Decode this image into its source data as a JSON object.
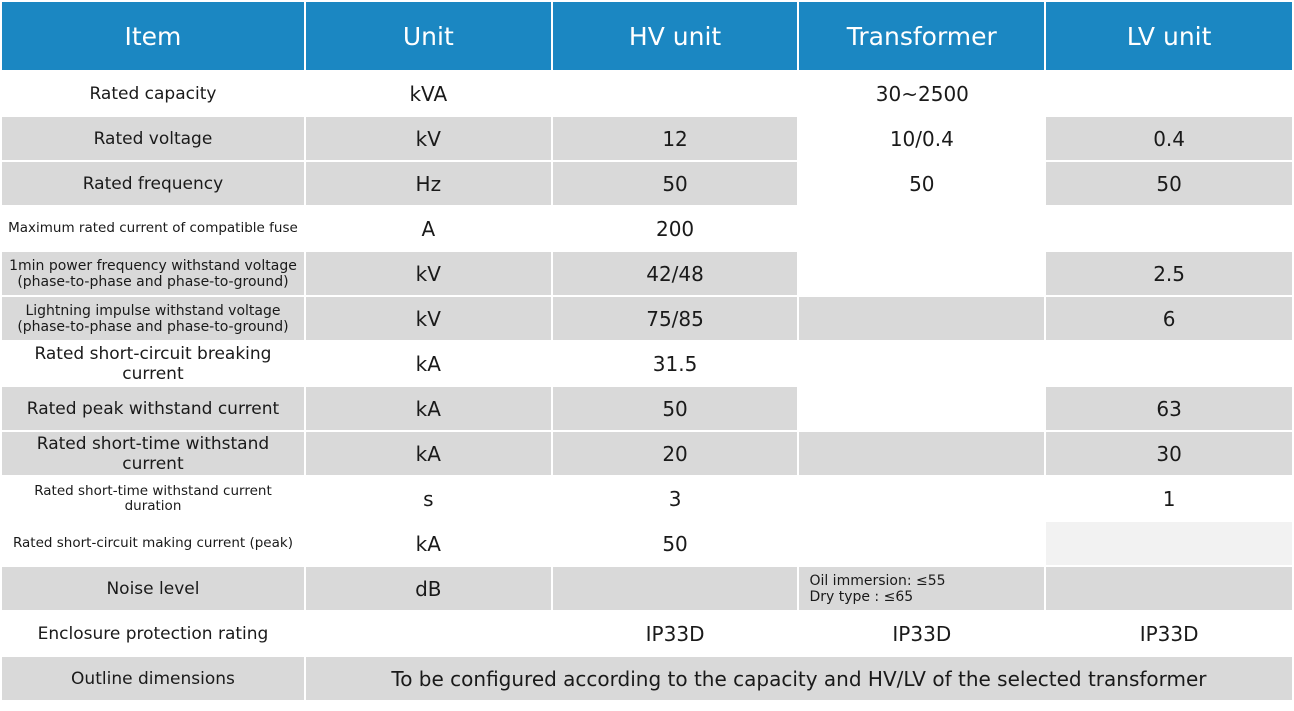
{
  "headers": {
    "item": "Item",
    "unit": "Unit",
    "hv": "HV unit",
    "transformer": "Transformer",
    "lv": "LV unit"
  },
  "rows": {
    "rated_capacity": {
      "item": "Rated capacity",
      "unit": "kVA",
      "value": "30~2500"
    },
    "rated_voltage": {
      "item": "Rated voltage",
      "unit": "kV",
      "hv": "12",
      "transformer": "10/0.4",
      "lv": "0.4"
    },
    "rated_frequency": {
      "item": "Rated frequency",
      "unit": "Hz",
      "hv": "50",
      "transformer": "50",
      "lv": "50"
    },
    "max_fuse_current": {
      "item": "Maximum rated current of compatible fuse",
      "unit": "A",
      "hv": "200"
    },
    "power_freq_withstand": {
      "item_line1": "1min power frequency withstand voltage",
      "item_line2": "(phase-to-phase and phase-to-ground)",
      "unit": "kV",
      "hv": "42/48",
      "lv": "2.5"
    },
    "lightning_impulse": {
      "item_line1": "Lightning impulse withstand voltage",
      "item_line2": "(phase-to-phase and phase-to-ground)",
      "unit": "kV",
      "hv": "75/85",
      "lv": "6"
    },
    "short_circuit_breaking": {
      "item": "Rated short-circuit breaking current",
      "unit": "kA",
      "hv": "31.5"
    },
    "peak_withstand": {
      "item": "Rated peak withstand current",
      "unit": "kA",
      "hv": "50",
      "lv": "63"
    },
    "short_time_withstand": {
      "item": "Rated short-time withstand current",
      "unit": "kA",
      "hv": "20",
      "lv": "30"
    },
    "short_time_duration": {
      "item": "Rated short-time withstand current duration",
      "unit": "s",
      "hv": "3",
      "lv": "1"
    },
    "making_current": {
      "item": "Rated short-circuit making current (peak)",
      "unit": "kA",
      "hv": "50"
    },
    "noise_level": {
      "item": "Noise level",
      "unit": "dB",
      "transformer_line1": "Oil immersion: ≤55",
      "transformer_line2": "Dry type : ≤65"
    },
    "enclosure_rating": {
      "item": "Enclosure protection rating",
      "hv": "IP33D",
      "transformer": "IP33D",
      "lv": "IP33D"
    },
    "outline_dimensions": {
      "item": "Outline dimensions",
      "value": "To be configured according to the capacity and HV/LV of the selected transformer"
    }
  },
  "colors": {
    "header_bg": "#1b87c2",
    "header_text": "#ffffff",
    "shaded_row": "#d9d9d9"
  }
}
